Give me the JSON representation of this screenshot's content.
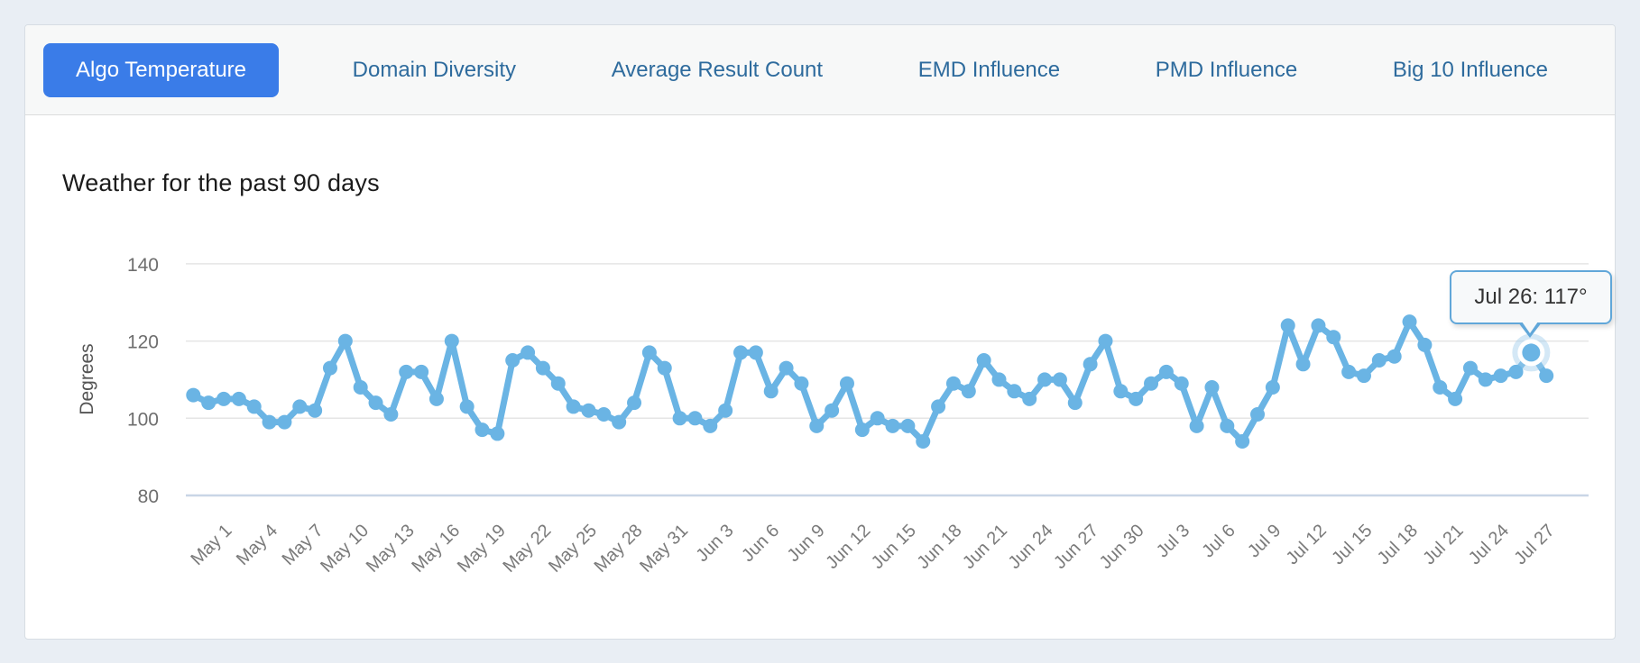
{
  "tabs": [
    {
      "label": "Algo Temperature",
      "active": true
    },
    {
      "label": "Domain Diversity",
      "active": false
    },
    {
      "label": "Average Result Count",
      "active": false
    },
    {
      "label": "EMD Influence",
      "active": false
    },
    {
      "label": "PMD Influence",
      "active": false
    },
    {
      "label": "Big 10 Influence",
      "active": false
    }
  ],
  "chart": {
    "title": "Weather for the past 90 days",
    "tooltip": {
      "label": "Jul 26: 117°"
    }
  },
  "colors": {
    "accent_blue": "#3a7ce8",
    "inactive_tab_text": "#2e6b9d",
    "line": "#6ab4e4",
    "halo": "#9fccec",
    "tooltip_border": "#61a7d9",
    "grid": "#e5e5e5",
    "axis_baseline": "#c9d6e6",
    "tick_text": "#6e6e6e",
    "title_text": "#1b1b1b"
  },
  "chart_data": {
    "type": "line",
    "title": "Weather for the past 90 days",
    "xlabel": "",
    "ylabel": "Degrees",
    "ylim": [
      80,
      140
    ],
    "yticks": [
      80,
      100,
      120,
      140
    ],
    "grid": true,
    "legend_position": "none",
    "x": [
      "Apr 29",
      "Apr 30",
      "May 1",
      "May 2",
      "May 3",
      "May 4",
      "May 5",
      "May 6",
      "May 7",
      "May 8",
      "May 9",
      "May 10",
      "May 11",
      "May 12",
      "May 13",
      "May 14",
      "May 15",
      "May 16",
      "May 17",
      "May 18",
      "May 19",
      "May 20",
      "May 21",
      "May 22",
      "May 23",
      "May 24",
      "May 25",
      "May 26",
      "May 27",
      "May 28",
      "May 29",
      "May 30",
      "May 31",
      "Jun 1",
      "Jun 2",
      "Jun 3",
      "Jun 4",
      "Jun 5",
      "Jun 6",
      "Jun 7",
      "Jun 8",
      "Jun 9",
      "Jun 10",
      "Jun 11",
      "Jun 12",
      "Jun 13",
      "Jun 14",
      "Jun 15",
      "Jun 16",
      "Jun 17",
      "Jun 18",
      "Jun 19",
      "Jun 20",
      "Jun 21",
      "Jun 22",
      "Jun 23",
      "Jun 24",
      "Jun 25",
      "Jun 26",
      "Jun 27",
      "Jun 28",
      "Jun 29",
      "Jun 30",
      "Jul 1",
      "Jul 2",
      "Jul 3",
      "Jul 4",
      "Jul 5",
      "Jul 6",
      "Jul 7",
      "Jul 8",
      "Jul 9",
      "Jul 10",
      "Jul 11",
      "Jul 12",
      "Jul 13",
      "Jul 14",
      "Jul 15",
      "Jul 16",
      "Jul 17",
      "Jul 18",
      "Jul 19",
      "Jul 20",
      "Jul 21",
      "Jul 22",
      "Jul 23",
      "Jul 24",
      "Jul 25",
      "Jul 26",
      "Jul 27"
    ],
    "values": [
      106,
      104,
      105,
      105,
      103,
      99,
      99,
      103,
      102,
      113,
      120,
      108,
      104,
      101,
      112,
      112,
      105,
      120,
      103,
      97,
      96,
      115,
      117,
      113,
      109,
      103,
      102,
      101,
      99,
      104,
      117,
      113,
      100,
      100,
      98,
      102,
      117,
      117,
      107,
      113,
      109,
      98,
      102,
      109,
      97,
      100,
      98,
      98,
      94,
      103,
      109,
      107,
      115,
      110,
      107,
      105,
      110,
      110,
      104,
      114,
      120,
      107,
      105,
      109,
      112,
      109,
      98,
      108,
      98,
      94,
      101,
      108,
      124,
      114,
      124,
      121,
      112,
      111,
      115,
      116,
      125,
      119,
      108,
      105,
      113,
      110,
      111,
      112,
      117,
      111
    ],
    "xtick_labels": [
      "May 1",
      "May 4",
      "May 7",
      "May 10",
      "May 13",
      "May 16",
      "May 19",
      "May 22",
      "May 25",
      "May 28",
      "May 31",
      "Jun 3",
      "Jun 6",
      "Jun 9",
      "Jun 12",
      "Jun 15",
      "Jun 18",
      "Jun 21",
      "Jun 24",
      "Jun 27",
      "Jun 30",
      "Jul 3",
      "Jul 6",
      "Jul 9",
      "Jul 12",
      "Jul 15",
      "Jul 18",
      "Jul 21",
      "Jul 24",
      "Jul 27"
    ],
    "highlight": {
      "date": "Jul 26",
      "value": 117,
      "tooltip": "Jul 26: 117°"
    }
  }
}
